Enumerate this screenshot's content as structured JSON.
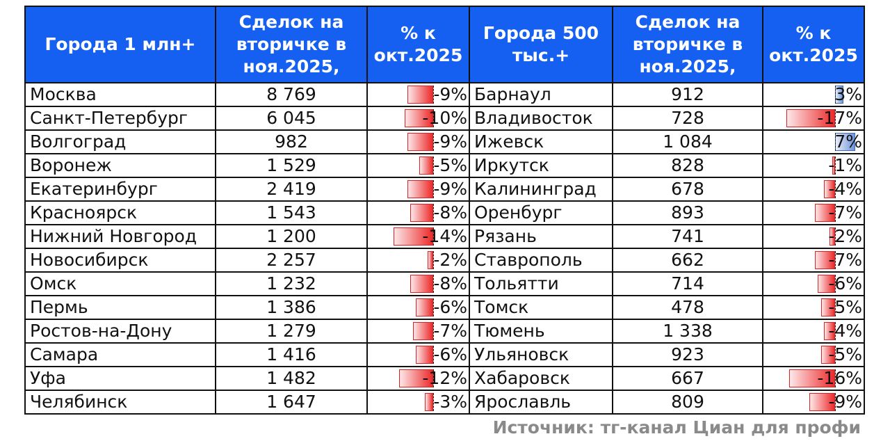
{
  "header": {
    "col_city_left": "Города 1 млн+",
    "col_deals_left": "Сделок на вторичке в ноя.2025,",
    "col_pct_left": "% к окт.2025",
    "col_city_right": "Города 500 тыс.+",
    "col_deals_right": "Сделок на вторичке в ноя.2025,",
    "col_pct_right": "% к окт.2025"
  },
  "rows": [
    {
      "left_city": "Москва",
      "left_deals": "8 769",
      "left_pct": "-9%",
      "left_pct_value": -9,
      "right_city": "Барнаул",
      "right_deals": "912",
      "right_pct": "3%",
      "right_pct_value": 3
    },
    {
      "left_city": "Санкт-Петербург",
      "left_deals": "6 045",
      "left_pct": "-10%",
      "left_pct_value": -10,
      "right_city": "Владивосток",
      "right_deals": "728",
      "right_pct": "-17%",
      "right_pct_value": -17
    },
    {
      "left_city": "Волгоград",
      "left_deals": "982",
      "left_pct": "-9%",
      "left_pct_value": -9,
      "right_city": "Ижевск",
      "right_deals": "1 084",
      "right_pct": "7%",
      "right_pct_value": 7
    },
    {
      "left_city": "Воронеж",
      "left_deals": "1 529",
      "left_pct": "-5%",
      "left_pct_value": -5,
      "right_city": "Иркутск",
      "right_deals": "828",
      "right_pct": "-1%",
      "right_pct_value": -1
    },
    {
      "left_city": "Екатеринбург",
      "left_deals": "2 419",
      "left_pct": "-9%",
      "left_pct_value": -9,
      "right_city": "Калининград",
      "right_deals": "678",
      "right_pct": "-4%",
      "right_pct_value": -4
    },
    {
      "left_city": "Красноярск",
      "left_deals": "1 543",
      "left_pct": "-8%",
      "left_pct_value": -8,
      "right_city": "Оренбург",
      "right_deals": "893",
      "right_pct": "-7%",
      "right_pct_value": -7
    },
    {
      "left_city": "Нижний Новгород",
      "left_deals": "1 200",
      "left_pct": "-14%",
      "left_pct_value": -14,
      "right_city": "Рязань",
      "right_deals": "741",
      "right_pct": "-2%",
      "right_pct_value": -2
    },
    {
      "left_city": "Новосибирск",
      "left_deals": "2 257",
      "left_pct": "-2%",
      "left_pct_value": -2,
      "right_city": "Ставрополь",
      "right_deals": "662",
      "right_pct": "-7%",
      "right_pct_value": -7
    },
    {
      "left_city": "Омск",
      "left_deals": "1 232",
      "left_pct": "-8%",
      "left_pct_value": -8,
      "right_city": "Тольятти",
      "right_deals": "714",
      "right_pct": "-6%",
      "right_pct_value": -6
    },
    {
      "left_city": "Пермь",
      "left_deals": "1 386",
      "left_pct": "-6%",
      "left_pct_value": -6,
      "right_city": "Томск",
      "right_deals": "478",
      "right_pct": "-5%",
      "right_pct_value": -5
    },
    {
      "left_city": "Ростов-на-Дону",
      "left_deals": "1 279",
      "left_pct": "-7%",
      "left_pct_value": -7,
      "right_city": "Тюмень",
      "right_deals": "1 338",
      "right_pct": "-4%",
      "right_pct_value": -4
    },
    {
      "left_city": "Самара",
      "left_deals": "1 416",
      "left_pct": "-6%",
      "left_pct_value": -6,
      "right_city": "Ульяновск",
      "right_deals": "923",
      "right_pct": "-5%",
      "right_pct_value": -5
    },
    {
      "left_city": "Уфа",
      "left_deals": "1 482",
      "left_pct": "-12%",
      "left_pct_value": -12,
      "right_city": "Хабаровск",
      "right_deals": "667",
      "right_pct": "-16%",
      "right_pct_value": -16
    },
    {
      "left_city": "Челябинск",
      "left_deals": "1 647",
      "left_pct": "-3%",
      "left_pct_value": -3,
      "right_city": "Ярославль",
      "right_deals": "809",
      "right_pct": "-9%",
      "right_pct_value": -9
    }
  ],
  "source": "Источник: тг-канал Циан для профи",
  "colors": {
    "header_bg": "#1560f0",
    "header_text": "#ffffff",
    "negative_bar": "#ec2a2a",
    "positive_bar": "#6f93d6",
    "source_text": "#8a8a8a"
  }
}
